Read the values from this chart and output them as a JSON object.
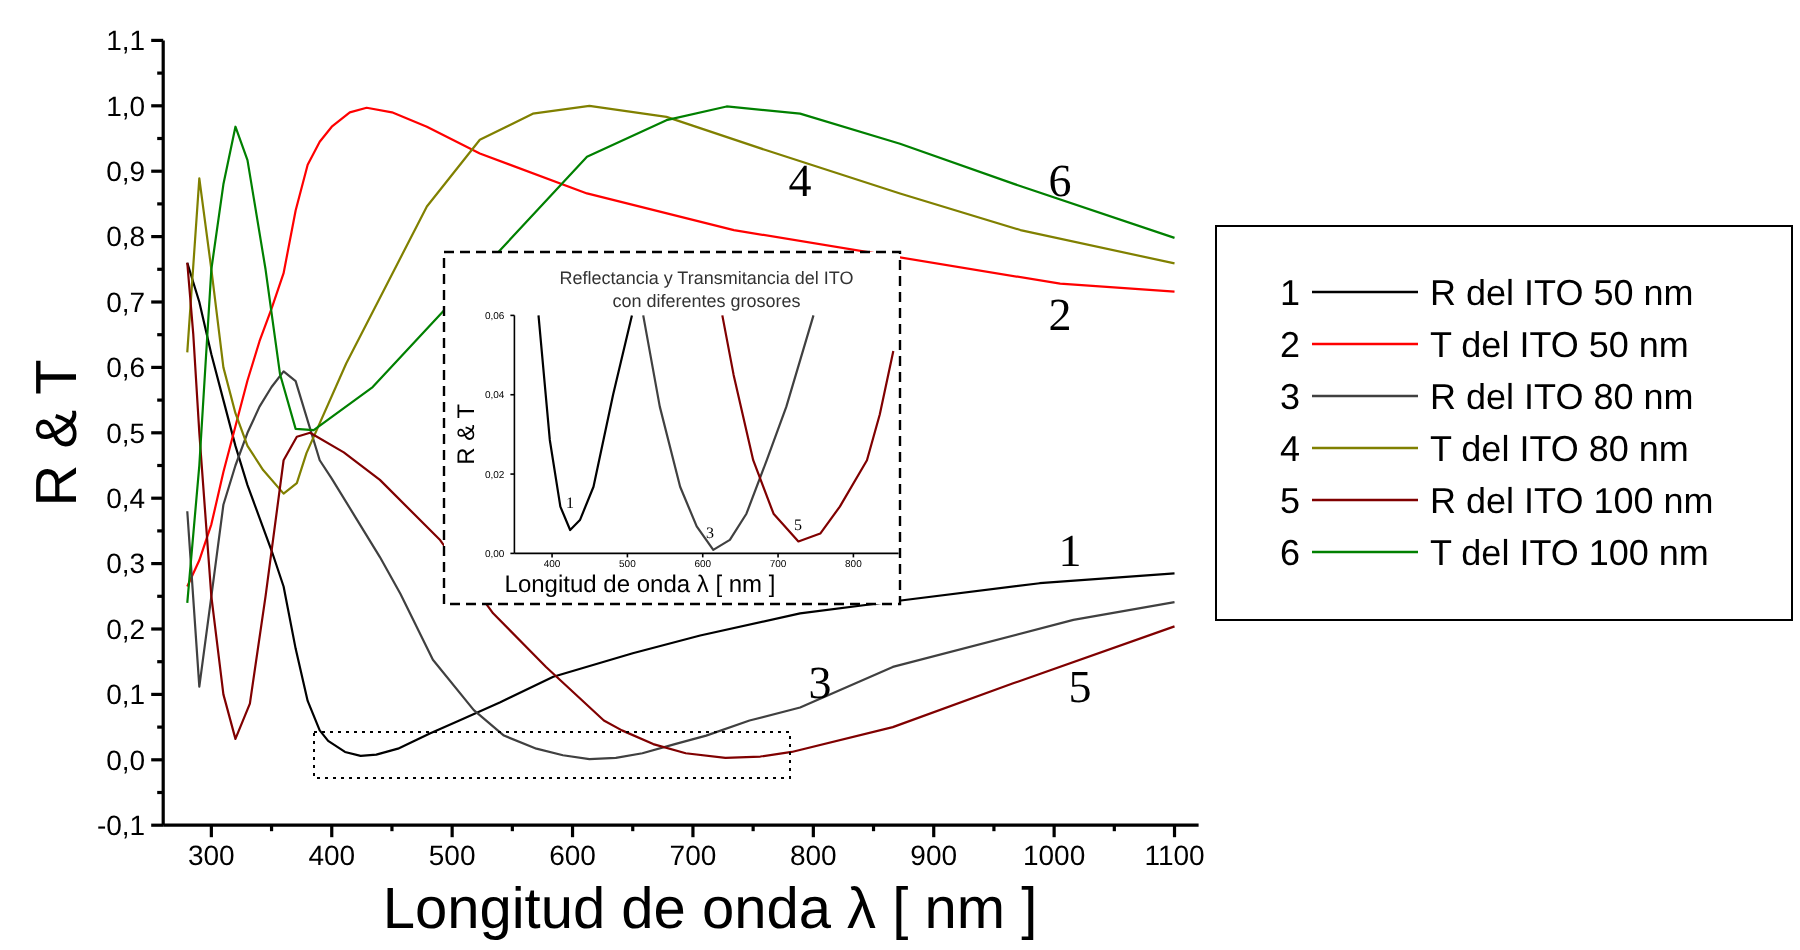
{
  "chart_data": [
    {
      "type": "line",
      "xlabel": "Longitud de onda  λ [ nm ]",
      "ylabel": "R & T",
      "xlim": [
        260,
        1120
      ],
      "ylim": [
        -0.1,
        1.1
      ],
      "xticks": [
        300,
        {
          "value": 350,
          "label": null
        },
        400,
        {
          "value": 450,
          "label": null
        },
        500,
        {
          "value": 550,
          "label": null
        },
        600,
        {
          "value": 650,
          "label": null
        },
        700,
        {
          "value": 750,
          "label": null
        },
        800,
        {
          "value": 850,
          "label": null
        },
        900,
        {
          "value": 950,
          "label": null
        },
        1000,
        {
          "value": 1050,
          "label": null
        },
        1100
      ],
      "yticks": [
        {
          "value": -0.1,
          "label": "-0,1"
        },
        {
          "value": -0.05,
          "label": null
        },
        {
          "value": 0,
          "label": "0,0"
        },
        {
          "value": 0.05,
          "label": null
        },
        {
          "value": 0.1,
          "label": "0,1"
        },
        {
          "value": 0.15,
          "label": null
        },
        {
          "value": 0.2,
          "label": "0,2"
        },
        {
          "value": 0.25,
          "label": null
        },
        {
          "value": 0.3,
          "label": "0,3"
        },
        {
          "value": 0.35,
          "label": null
        },
        {
          "value": 0.4,
          "label": "0,4"
        },
        {
          "value": 0.45,
          "label": null
        },
        {
          "value": 0.5,
          "label": "0,5"
        },
        {
          "value": 0.55,
          "label": null
        },
        {
          "value": 0.6,
          "label": "0,6"
        },
        {
          "value": 0.65,
          "label": null
        },
        {
          "value": 0.7,
          "label": "0,7"
        },
        {
          "value": 0.75,
          "label": null
        },
        {
          "value": 0.8,
          "label": "0,8"
        },
        {
          "value": 0.85,
          "label": null
        },
        {
          "value": 0.9,
          "label": "0,9"
        },
        {
          "value": 0.95,
          "label": null
        },
        {
          "value": 1.0,
          "label": "1,0"
        },
        {
          "value": 1.05,
          "label": null
        },
        {
          "value": 1.1,
          "label": "1,1"
        }
      ],
      "legend": "right",
      "marker": "none",
      "line_style": "solid",
      "series": [
        {
          "name": "R del ITO 50 nm",
          "color": "#000000",
          "x": [
            280,
            290,
            300,
            310,
            320,
            330,
            340,
            350,
            360,
            370,
            380,
            390,
            397,
            411,
            424,
            437,
            455,
            481,
            506,
            540,
            584,
            650,
            706,
            789,
            866,
            988,
            1100
          ],
          "values": [
            0.76,
            0.7,
            0.62,
            0.55,
            0.48,
            0.42,
            0.37,
            0.32,
            0.265,
            0.17,
            0.09,
            0.045,
            0.029,
            0.012,
            0.006,
            0.008,
            0.017,
            0.04,
            0.06,
            0.088,
            0.127,
            0.163,
            0.19,
            0.224,
            0.242,
            0.27,
            0.285
          ]
        },
        {
          "name": "T del ITO 50 nm",
          "color": "#ff0000",
          "x": [
            280,
            290,
            300,
            310,
            320,
            330,
            340,
            350,
            360,
            370,
            380,
            390,
            400,
            415,
            429,
            450,
            479,
            523,
            612,
            734,
            866,
            1005,
            1100
          ],
          "values": [
            0.265,
            0.305,
            0.36,
            0.44,
            0.51,
            0.58,
            0.64,
            0.69,
            0.744,
            0.84,
            0.91,
            0.945,
            0.968,
            0.99,
            0.997,
            0.99,
            0.968,
            0.927,
            0.866,
            0.81,
            null,
            0.728,
            0.716
          ]
        },
        {
          "name": "R del ITO 80 nm",
          "color": "#404040",
          "x": [
            280,
            290,
            300,
            310,
            320,
            330,
            340,
            350,
            360,
            370,
            390,
            400,
            420,
            440,
            457,
            484,
            518,
            543,
            570,
            592,
            614,
            636,
            658,
            685,
            711,
            747,
            789,
            866,
            1016,
            1100
          ],
          "values": [
            0.38,
            0.112,
            0.25,
            0.39,
            0.45,
            0.5,
            0.54,
            0.57,
            0.594,
            0.579,
            0.458,
            0.43,
            0.37,
            0.31,
            0.254,
            0.153,
            0.076,
            0.037,
            0.017,
            0.007,
            0.001,
            0.003,
            0.01,
            0.024,
            0.037,
            0.06,
            0.08,
            0.142,
            0.214,
            0.241
          ]
        },
        {
          "name": "T del ITO 80 nm",
          "color": "#808000",
          "x": [
            280,
            290,
            300,
            310,
            320,
            330,
            343,
            360,
            371,
            379,
            412,
            479,
            523,
            567,
            614,
            678,
            761,
            872,
            972,
            1100
          ],
          "values": [
            0.623,
            0.889,
            0.75,
            0.6,
            0.53,
            0.48,
            0.443,
            0.407,
            0.423,
            0.469,
            0.606,
            0.846,
            0.948,
            0.988,
            1.0,
            0.983,
            0.932,
            0.866,
            0.81,
            0.759
          ]
        },
        {
          "name": "R del ITO 100 nm",
          "color": "#800000",
          "x": [
            280,
            285,
            290,
            300,
            310,
            320,
            332,
            345,
            360,
            371,
            382,
            410,
            440,
            490,
            534,
            578,
            626,
            641,
            667,
            694,
            727,
            756,
            782,
            866,
            966,
            1100
          ],
          "values": [
            0.76,
            0.65,
            0.5,
            0.25,
            0.1,
            0.032,
            0.086,
            0.25,
            0.458,
            0.494,
            0.5,
            0.47,
            0.428,
            0.336,
            0.224,
            0.142,
            0.06,
            0.045,
            0.024,
            0.01,
            0.003,
            0.005,
            0.012,
            0.05,
            0.117,
            0.204
          ]
        },
        {
          "name": "T del ITO 100 nm",
          "color": "#008000",
          "x": [
            280,
            290,
            300,
            310,
            320,
            330,
            345,
            357,
            370,
            385,
            434,
            512,
            612,
            678,
            728,
            789,
            872,
            966,
            1100
          ],
          "values": [
            0.24,
            0.45,
            0.75,
            0.88,
            0.968,
            0.917,
            0.75,
            0.59,
            0.506,
            0.504,
            0.57,
            null,
            0.922,
            0.978,
            0.999,
            0.988,
            0.942,
            0.881,
            0.798
          ]
        }
      ],
      "annotations": [
        "1",
        "2",
        "3",
        "4",
        "5",
        "6"
      ]
    },
    {
      "type": "line",
      "title": "Reflectancia y Transmitancia del ITO con diferentes grosores",
      "xlabel": "Longitud de onda  λ [ nm ]",
      "ylabel": "R & T",
      "xlim": [
        350,
        860
      ],
      "ylim": [
        0,
        0.06
      ],
      "xticks": [
        400,
        500,
        600,
        700,
        800
      ],
      "yticks": [
        {
          "value": 0,
          "label": "0,00"
        },
        {
          "value": 0.02,
          "label": "0,02"
        },
        {
          "value": 0.04,
          "label": "0,04"
        },
        {
          "value": 0.06,
          "label": "0,06"
        }
      ],
      "marker": "none",
      "line_style": "solid",
      "series": [
        {
          "color": "#000000",
          "x": [
            382,
            397,
            411,
            424,
            437,
            455,
            481,
            506
          ],
          "values": [
            0.06,
            0.0286,
            0.0118,
            0.0059,
            0.0084,
            0.0168,
            0.04,
            0.06
          ]
        },
        {
          "color": "#404040",
          "x": [
            521,
            543,
            570,
            592,
            614,
            636,
            658,
            685,
            711,
            747
          ],
          "values": [
            0.06,
            0.037,
            0.0168,
            0.0068,
            0.0009,
            0.0034,
            0.01,
            0.0235,
            0.037,
            0.06
          ]
        },
        {
          "color": "#800000",
          "x": [
            626,
            641,
            667,
            694,
            727,
            756,
            782,
            818,
            835,
            853
          ],
          "values": [
            0.06,
            0.045,
            0.0235,
            0.01,
            0.003,
            0.005,
            0.0118,
            0.0235,
            0.035,
            0.051
          ]
        }
      ],
      "annotations": [
        "1",
        "3",
        "5"
      ]
    }
  ]
}
